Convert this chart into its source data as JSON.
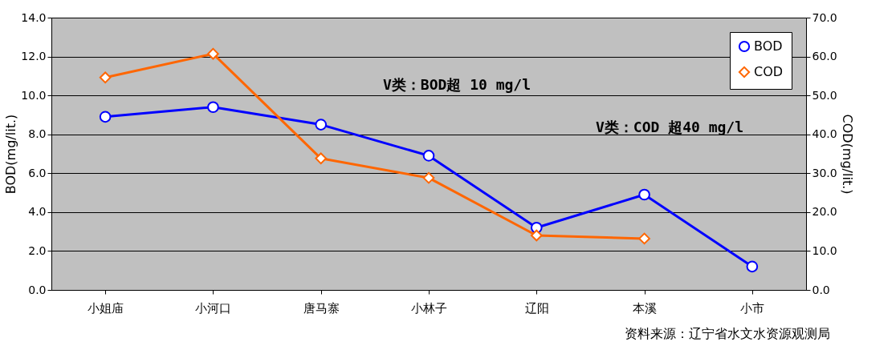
{
  "chart_data": {
    "type": "line",
    "categories": [
      "小姐庙",
      "小河口",
      "唐马寨",
      "小林子",
      "辽阳",
      "本溪",
      "小市"
    ],
    "series": [
      {
        "name": "BOD",
        "color": "#0000ff",
        "marker": "circle",
        "values": [
          8.9,
          9.4,
          8.5,
          6.9,
          3.2,
          4.9,
          1.2
        ]
      },
      {
        "name": "COD",
        "color": "#ff6600",
        "marker": "diamond",
        "axis": "y2",
        "values": [
          54.6,
          60.7,
          33.8,
          28.8,
          14.0,
          13.2,
          null
        ]
      }
    ],
    "ylabel": "BOD(mg/lit.)",
    "y2label": "COD(mg/lit.)",
    "ylim": [
      0,
      14
    ],
    "yticks": [
      {
        "value": 0,
        "label": "0.0"
      },
      {
        "value": 2,
        "label": "2.0"
      },
      {
        "value": 4,
        "label": "4.0"
      },
      {
        "value": 6,
        "label": "6.0"
      },
      {
        "value": 8,
        "label": "8.0"
      },
      {
        "value": 10,
        "label": "10.0"
      },
      {
        "value": 12,
        "label": "12.0"
      },
      {
        "value": 14,
        "label": "14.0"
      }
    ],
    "y2lim": [
      0,
      70
    ],
    "y2ticks": [
      {
        "value": 0,
        "label": "0.0"
      },
      {
        "value": 10,
        "label": "10.0"
      },
      {
        "value": 20,
        "label": "20.0"
      },
      {
        "value": 30,
        "label": "30.0"
      },
      {
        "value": 40,
        "label": "40.0"
      },
      {
        "value": 50,
        "label": "50.0"
      },
      {
        "value": 60,
        "label": "60.0"
      },
      {
        "value": 70,
        "label": "70.0"
      }
    ],
    "annotations": [
      "V类：BOD超 10 mg/l",
      "V类：COD 超40 mg/l",
      "资料来源：辽宁省水文水资源观测局"
    ],
    "grid": "y",
    "legend": "top right",
    "line_style": "solid"
  }
}
